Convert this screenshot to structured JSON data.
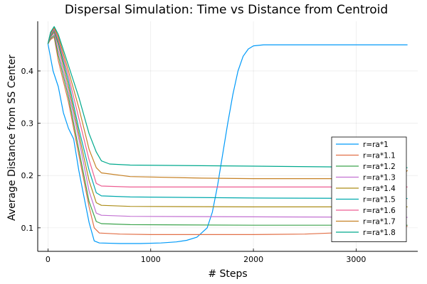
{
  "chart_data": {
    "type": "line",
    "title": "Dispersal Simulation: Time vs Distance from Centroid",
    "xlabel": "# Steps",
    "ylabel": "Average Distance from SS Center",
    "xlim": [
      -100,
      3600
    ],
    "ylim": [
      0.055,
      0.495
    ],
    "xticks": [
      0,
      1000,
      2000,
      3000
    ],
    "xtick_labels": [
      "0",
      "1000",
      "2000",
      "3000"
    ],
    "yticks": [
      0.1,
      0.2,
      0.3,
      0.4
    ],
    "ytick_labels": [
      "0.1",
      "0.2",
      "0.3",
      "0.4"
    ],
    "grid": true,
    "legend_position": "bottom-right",
    "series": [
      {
        "name": "r=ra*1",
        "color": "#009AF9",
        "points": [
          [
            0,
            0.452
          ],
          [
            50,
            0.4
          ],
          [
            100,
            0.37
          ],
          [
            150,
            0.32
          ],
          [
            200,
            0.29
          ],
          [
            250,
            0.27
          ],
          [
            300,
            0.21
          ],
          [
            350,
            0.16
          ],
          [
            400,
            0.11
          ],
          [
            450,
            0.075
          ],
          [
            500,
            0.071
          ],
          [
            700,
            0.07
          ],
          [
            900,
            0.07
          ],
          [
            1100,
            0.071
          ],
          [
            1250,
            0.073
          ],
          [
            1350,
            0.076
          ],
          [
            1450,
            0.082
          ],
          [
            1550,
            0.1
          ],
          [
            1600,
            0.13
          ],
          [
            1650,
            0.18
          ],
          [
            1700,
            0.24
          ],
          [
            1750,
            0.3
          ],
          [
            1800,
            0.355
          ],
          [
            1850,
            0.4
          ],
          [
            1900,
            0.428
          ],
          [
            1950,
            0.442
          ],
          [
            2000,
            0.448
          ],
          [
            2100,
            0.45
          ],
          [
            2500,
            0.45
          ],
          [
            3500,
            0.45
          ]
        ]
      },
      {
        "name": "r=ra*1.1",
        "color": "#E26F46",
        "points": [
          [
            0,
            0.452
          ],
          [
            25,
            0.46
          ],
          [
            60,
            0.465
          ],
          [
            100,
            0.42
          ],
          [
            200,
            0.34
          ],
          [
            300,
            0.24
          ],
          [
            400,
            0.14
          ],
          [
            450,
            0.1
          ],
          [
            500,
            0.09
          ],
          [
            700,
            0.088
          ],
          [
            1000,
            0.087
          ],
          [
            2000,
            0.087
          ],
          [
            2500,
            0.088
          ],
          [
            3000,
            0.092
          ],
          [
            3300,
            0.098
          ],
          [
            3500,
            0.103
          ]
        ]
      },
      {
        "name": "r=ra*1.2",
        "color": "#3DA44D",
        "points": [
          [
            0,
            0.452
          ],
          [
            25,
            0.462
          ],
          [
            60,
            0.468
          ],
          [
            100,
            0.43
          ],
          [
            200,
            0.35
          ],
          [
            300,
            0.25
          ],
          [
            400,
            0.15
          ],
          [
            470,
            0.112
          ],
          [
            520,
            0.108
          ],
          [
            800,
            0.106
          ],
          [
            2000,
            0.105
          ],
          [
            3500,
            0.105
          ]
        ]
      },
      {
        "name": "r=ra*1.3",
        "color": "#C271D2",
        "points": [
          [
            0,
            0.452
          ],
          [
            25,
            0.464
          ],
          [
            60,
            0.472
          ],
          [
            100,
            0.44
          ],
          [
            200,
            0.36
          ],
          [
            300,
            0.27
          ],
          [
            400,
            0.17
          ],
          [
            470,
            0.128
          ],
          [
            520,
            0.124
          ],
          [
            800,
            0.122
          ],
          [
            2000,
            0.121
          ],
          [
            3500,
            0.12
          ]
        ]
      },
      {
        "name": "r=ra*1.4",
        "color": "#AC8D18",
        "points": [
          [
            0,
            0.452
          ],
          [
            25,
            0.466
          ],
          [
            60,
            0.475
          ],
          [
            100,
            0.45
          ],
          [
            200,
            0.37
          ],
          [
            300,
            0.28
          ],
          [
            400,
            0.19
          ],
          [
            470,
            0.148
          ],
          [
            520,
            0.143
          ],
          [
            800,
            0.141
          ],
          [
            2000,
            0.14
          ],
          [
            3500,
            0.14
          ]
        ]
      },
      {
        "name": "r=ra*1.5",
        "color": "#00A9AD",
        "points": [
          [
            0,
            0.452
          ],
          [
            25,
            0.468
          ],
          [
            60,
            0.478
          ],
          [
            100,
            0.455
          ],
          [
            200,
            0.38
          ],
          [
            300,
            0.29
          ],
          [
            400,
            0.21
          ],
          [
            470,
            0.167
          ],
          [
            520,
            0.161
          ],
          [
            800,
            0.159
          ],
          [
            2000,
            0.157
          ],
          [
            3500,
            0.156
          ]
        ]
      },
      {
        "name": "r=ra*1.6",
        "color": "#ED5D92",
        "points": [
          [
            0,
            0.452
          ],
          [
            25,
            0.47
          ],
          [
            60,
            0.48
          ],
          [
            100,
            0.46
          ],
          [
            200,
            0.39
          ],
          [
            300,
            0.31
          ],
          [
            400,
            0.23
          ],
          [
            470,
            0.185
          ],
          [
            520,
            0.18
          ],
          [
            800,
            0.178
          ],
          [
            2000,
            0.178
          ],
          [
            3500,
            0.178
          ]
        ]
      },
      {
        "name": "r=ra*1.7",
        "color": "#C68125",
        "points": [
          [
            0,
            0.452
          ],
          [
            25,
            0.472
          ],
          [
            60,
            0.483
          ],
          [
            100,
            0.465
          ],
          [
            200,
            0.4
          ],
          [
            300,
            0.33
          ],
          [
            400,
            0.25
          ],
          [
            470,
            0.215
          ],
          [
            520,
            0.205
          ],
          [
            800,
            0.198
          ],
          [
            1500,
            0.195
          ],
          [
            2000,
            0.194
          ],
          [
            3000,
            0.194
          ],
          [
            3400,
            0.195
          ],
          [
            3450,
            0.2
          ],
          [
            3500,
            0.21
          ]
        ]
      },
      {
        "name": "r=ra*1.8",
        "color": "#00A98D",
        "points": [
          [
            0,
            0.452
          ],
          [
            25,
            0.474
          ],
          [
            60,
            0.485
          ],
          [
            100,
            0.47
          ],
          [
            200,
            0.41
          ],
          [
            300,
            0.35
          ],
          [
            400,
            0.28
          ],
          [
            470,
            0.245
          ],
          [
            520,
            0.228
          ],
          [
            600,
            0.222
          ],
          [
            800,
            0.22
          ],
          [
            2000,
            0.218
          ],
          [
            3000,
            0.216
          ],
          [
            3500,
            0.215
          ]
        ]
      }
    ]
  }
}
